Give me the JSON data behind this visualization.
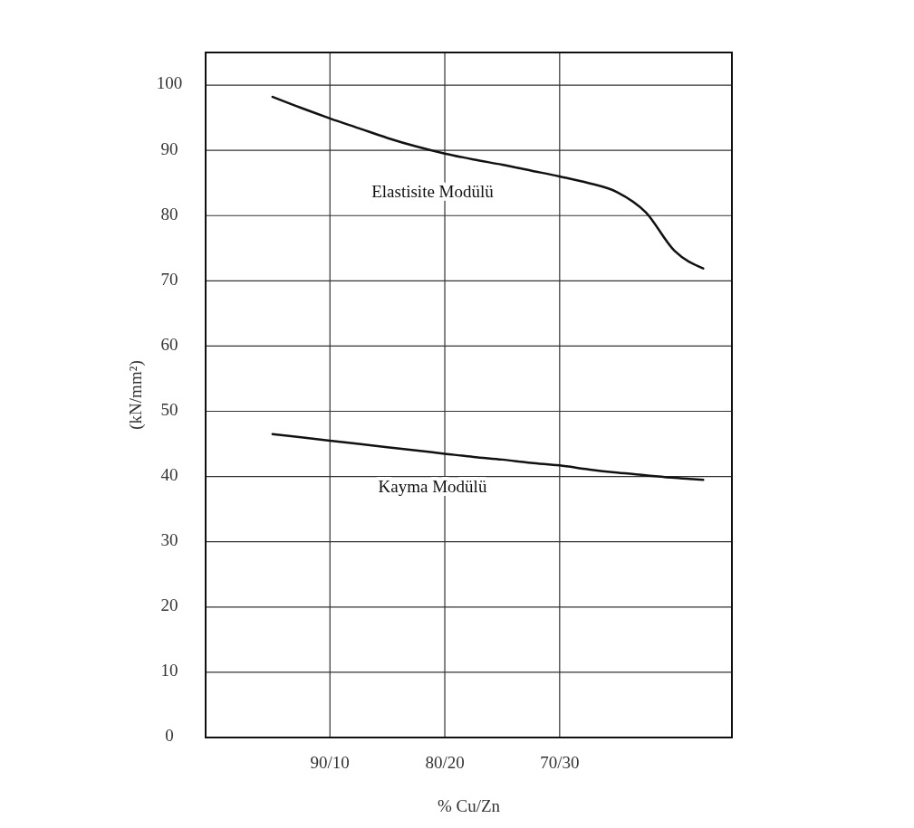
{
  "chart_data": {
    "type": "line",
    "xlabel": "% Cu/Zn",
    "ylabel": "(kN/mm²)",
    "categories": [
      null,
      null,
      "90/10",
      null,
      null,
      null,
      "80/20",
      null,
      null,
      null,
      "70/30",
      null,
      null,
      null,
      null,
      null
    ],
    "ylim": [
      0,
      105
    ],
    "yticks": [
      0,
      10,
      20,
      30,
      40,
      50,
      60,
      70,
      80,
      90,
      100
    ],
    "grid": true,
    "marker": "none",
    "line_style": "solid",
    "series": [
      {
        "name": "Elastisite Modülü",
        "color": "#111111",
        "values": [
          98.2,
          96.5,
          94.9,
          93.4,
          91.9,
          90.6,
          89.5,
          88.6,
          87.8,
          86.9,
          86.0,
          85.0,
          83.6,
          80.5,
          74.6,
          71.9
        ]
      },
      {
        "name": "Kayma Modülü",
        "color": "#111111",
        "values": [
          46.5,
          46.0,
          45.5,
          45.0,
          44.5,
          44.0,
          43.5,
          43.0,
          42.6,
          42.1,
          41.7,
          41.1,
          40.6,
          40.2,
          39.8,
          39.5
        ]
      }
    ]
  }
}
